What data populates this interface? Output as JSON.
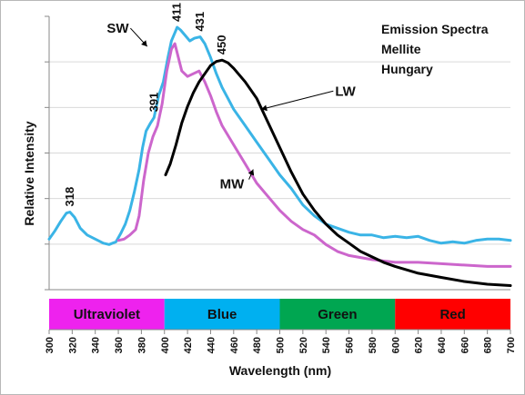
{
  "chart_data": {
    "type": "line",
    "title_lines": [
      "Emission Spectra",
      "Mellite",
      "Hungary"
    ],
    "xlabel": "Wavelength (nm)",
    "ylabel": "Relative Intensity",
    "xlim": [
      300,
      700
    ],
    "ylim": [
      0,
      100
    ],
    "x_ticks": [
      300,
      320,
      340,
      360,
      380,
      400,
      420,
      440,
      460,
      480,
      500,
      520,
      540,
      560,
      580,
      600,
      620,
      640,
      660,
      680,
      700
    ],
    "grid": "horizontal",
    "bands": [
      {
        "label": "Ultraviolet",
        "from": 300,
        "to": 400,
        "color": "#ee22ee"
      },
      {
        "label": "Blue",
        "from": 400,
        "to": 500,
        "color": "#00b0f0"
      },
      {
        "label": "Green",
        "from": 500,
        "to": 600,
        "color": "#00a651"
      },
      {
        "label": "Red",
        "from": 600,
        "to": 700,
        "color": "#ff0000"
      }
    ],
    "series": [
      {
        "name": "SW",
        "color": "#3ab4e6",
        "x": [
          300,
          305,
          310,
          315,
          318,
          322,
          327,
          333,
          340,
          347,
          352,
          358,
          362,
          366,
          370,
          374,
          378,
          381,
          384,
          388,
          391,
          395,
          399,
          403,
          406,
          409,
          411,
          414,
          418,
          422,
          426,
          431,
          435,
          440,
          445,
          450,
          455,
          460,
          470,
          480,
          490,
          500,
          510,
          520,
          530,
          540,
          550,
          560,
          570,
          580,
          590,
          600,
          610,
          620,
          630,
          640,
          650,
          660,
          670,
          680,
          690,
          700
        ],
        "y": [
          18.5,
          21.5,
          25,
          28,
          28.4,
          26.5,
          22.5,
          20,
          18.5,
          17,
          16.5,
          17.5,
          20.5,
          24,
          29,
          36,
          44,
          52,
          58,
          61,
          63,
          71,
          76,
          85,
          91,
          94,
          96,
          95,
          93,
          91,
          92,
          92.5,
          90,
          85,
          79,
          74,
          70,
          66,
          60,
          54,
          48,
          42,
          37,
          31,
          27,
          24,
          22.5,
          21,
          20,
          20,
          19,
          19.5,
          19,
          19.5,
          18,
          17,
          17.5,
          17,
          18,
          18.5,
          18.5,
          18
        ]
      },
      {
        "name": "MW",
        "color": "#cc66cc",
        "x": [
          360,
          365,
          370,
          375,
          378,
          382,
          386,
          390,
          394,
          398,
          402,
          406,
          409,
          412,
          415,
          420,
          425,
          430,
          435,
          440,
          445,
          450,
          460,
          470,
          480,
          490,
          500,
          510,
          520,
          530,
          540,
          550,
          560,
          580,
          600,
          620,
          640,
          660,
          680,
          700
        ],
        "y": [
          18,
          18.5,
          20,
          22,
          27,
          40,
          50,
          56,
          60,
          68,
          80,
          88,
          90,
          85,
          80,
          78,
          79,
          80,
          76,
          71,
          65,
          60,
          53,
          46,
          39,
          34,
          29,
          25,
          22,
          20,
          16.5,
          14,
          12.5,
          11,
          10,
          10,
          9.5,
          9,
          8.5,
          8.5
        ]
      },
      {
        "name": "LW",
        "color": "#000000",
        "x": [
          401,
          405,
          410,
          415,
          420,
          425,
          430,
          435,
          440,
          445,
          448,
          450,
          455,
          460,
          470,
          480,
          490,
          500,
          510,
          520,
          530,
          540,
          550,
          560,
          570,
          580,
          590,
          600,
          620,
          640,
          660,
          680,
          700
        ],
        "y": [
          42,
          46,
          53,
          61,
          67,
          72,
          76,
          79,
          82,
          83.5,
          83.8,
          84,
          83,
          81,
          76,
          70,
          61,
          52,
          43,
          35,
          29,
          24,
          20,
          17,
          14,
          12,
          10,
          8.5,
          6,
          4.5,
          3,
          2,
          1.5
        ]
      }
    ],
    "peak_labels": [
      {
        "text": "318",
        "x": 318,
        "y": 28.4
      },
      {
        "text": "391",
        "x": 391,
        "y": 63
      },
      {
        "text": "411",
        "x": 411,
        "y": 96
      },
      {
        "text": "431",
        "x": 431,
        "y": 92.5
      },
      {
        "text": "450",
        "x": 450,
        "y": 84
      }
    ],
    "series_labels": [
      {
        "text": "SW",
        "x": 350,
        "y": 94,
        "arrow_to": [
          385,
          89
        ]
      },
      {
        "text": "LW",
        "x": 548,
        "y": 71,
        "arrow_to": [
          484,
          66
        ]
      },
      {
        "text": "MW",
        "x": 448,
        "y": 37,
        "arrow_to": [
          477,
          44
        ]
      }
    ]
  }
}
